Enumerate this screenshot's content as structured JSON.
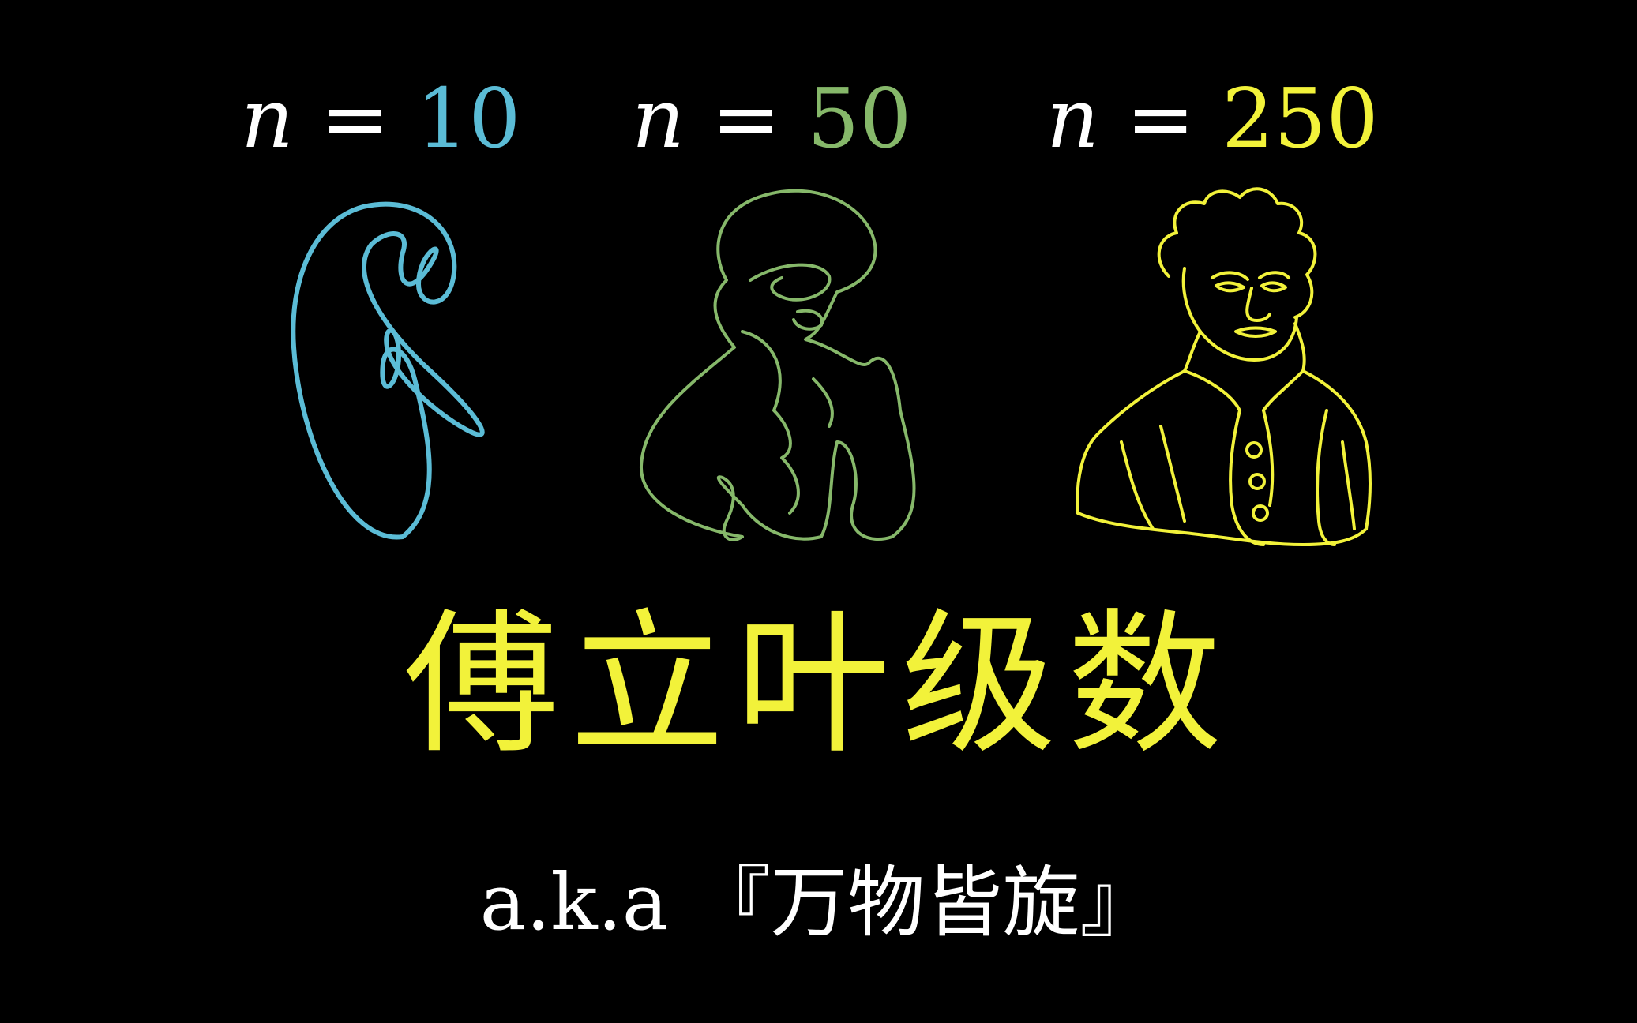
{
  "colors": {
    "background": "#000000",
    "text": "#ffffff",
    "blue": "#5bbcd6",
    "green": "#86b86a",
    "yellow": "#f2f23a"
  },
  "labels": [
    {
      "var": "n",
      "eq": "=",
      "value": "10"
    },
    {
      "var": "n",
      "eq": "=",
      "value": "50"
    },
    {
      "var": "n",
      "eq": "=",
      "value": "250"
    }
  ],
  "title": "傅立叶级数",
  "subtitle": "a.k.a 『万物皆旋』"
}
